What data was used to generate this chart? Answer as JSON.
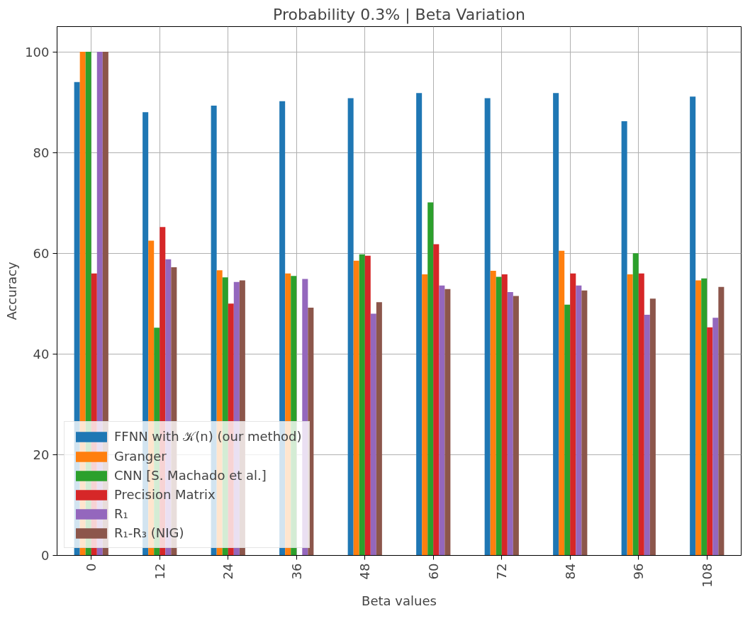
{
  "chart_data": {
    "type": "bar",
    "title": "Probability 0.3% | Beta Variation",
    "xlabel": "Beta values",
    "ylabel": "Accuracy",
    "categories": [
      "0",
      "12",
      "24",
      "36",
      "48",
      "60",
      "72",
      "84",
      "96",
      "108"
    ],
    "series": [
      {
        "name": "FFNN with 𝒦(n) (our method)",
        "color": "#1f77b4",
        "values": [
          94,
          88,
          89.3,
          90.2,
          90.8,
          91.8,
          90.8,
          91.8,
          86.2,
          91.1
        ]
      },
      {
        "name": "Granger",
        "color": "#ff7f0e",
        "values": [
          100,
          62.5,
          56.6,
          56,
          58.5,
          55.8,
          56.5,
          60.5,
          55.8,
          54.6
        ]
      },
      {
        "name": "CNN [S. Machado et al.]",
        "color": "#2ca02c",
        "values": [
          100,
          45.2,
          55.2,
          55.5,
          59.8,
          70.1,
          55.3,
          49.8,
          60,
          55
        ]
      },
      {
        "name": "Precision Matrix",
        "color": "#d62728",
        "values": [
          56,
          65.2,
          50,
          null,
          59.5,
          61.8,
          55.8,
          56,
          56,
          45.3
        ]
      },
      {
        "name": "R₁",
        "color": "#9467bd",
        "values": [
          100,
          58.8,
          54.3,
          54.9,
          48,
          53.6,
          52.3,
          53.6,
          47.8,
          47.2
        ]
      },
      {
        "name": "R₁-R₃ (NIG)",
        "color": "#8c564b",
        "values": [
          100,
          57.2,
          54.6,
          49.2,
          50.3,
          52.9,
          51.5,
          52.6,
          51,
          53.3
        ]
      }
    ],
    "ylim": [
      0,
      105
    ],
    "yticks": [
      0,
      20,
      40,
      60,
      80,
      100
    ],
    "grid": true,
    "legend": "bottom left"
  }
}
